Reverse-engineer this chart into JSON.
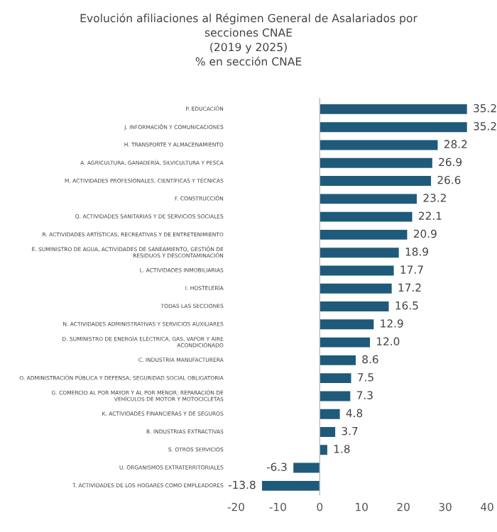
{
  "chart_data": {
    "type": "bar",
    "orientation": "horizontal",
    "title": "Evolución afiliaciones al Régimen General de Asalariados por\nsecciones CNAE\n(2019 y 2025)\n% en sección CNAE",
    "categories": [
      "P. EDUCACIÓN",
      "J. INFORMACIÓN Y COMUNICACIONES",
      "H. TRANSPORTE Y ALMACENAMIENTO",
      "A. AGRICULTURA, GANADERÍA, SILVICULTURA Y PESCA",
      "M. ACTIVIDADES PROFESIONALES, CIENTÍFICAS Y TÉCNICAS",
      "F. CONSTRUCCIÓN",
      "Q. ACTIVIDADES SANITARIAS Y DE SERVICIOS SOCIALES",
      "R. ACTIVIDADES ARTÍSTICAS, RECREATIVAS Y DE ENTRETENIMIENTO",
      "E. SUMINISTRO DE AGUA, ACTIVIDADES DE SANEAMIENTO, GESTIÓN DE\nRESIDUOS Y DESCONTAMINACIÓN",
      "L. ACTIVIDADES INMOBILIARIAS",
      "I. HOSTELERÍA",
      "TODAS LAS SECCIONES",
      "N. ACTIVIDADES ADMINISTRATIVAS Y SERVICIOS AUXILIARES",
      "D. SUMINISTRO DE ENERGÍA ELÉCTRICA, GAS, VAPOR Y AIRE\nACONDICIONADO",
      "C. INDUSTRIA MANUFACTURERA",
      "O. ADMINISTRACIÓN PÚBLICA Y DEFENSA; SEGURIDAD SOCIAL OBLIGATORIA",
      "G. COMERCIO AL POR MAYOR Y AL POR MENOR; REPARACIÓN DE\nVEHÍCULOS DE MOTOR Y MOTOCICLETAS",
      "K. ACTIVIDADES FINANCIERAS Y DE SEGUROS",
      "B. INDUSTRIAS EXTRACTIVAS",
      "S. OTROS SERVICIOS",
      "U. ORGANISMOS EXTRATERRITORIALES",
      "T. ACTIVIDADES DE LOS HOGARES COMO EMPLEADORES"
    ],
    "values": [
      35.2,
      35.2,
      28.2,
      26.9,
      26.6,
      23.2,
      22.1,
      20.9,
      18.9,
      17.7,
      17.2,
      16.5,
      12.9,
      12.0,
      8.6,
      7.5,
      7.3,
      4.8,
      3.7,
      1.8,
      -6.3,
      -13.8
    ],
    "value_labels": [
      "35.2",
      "35.2",
      "28.2",
      "26.9",
      "26.6",
      "23.2",
      "22.1",
      "20.9",
      "18.9",
      "17.7",
      "17.2",
      "16.5",
      "12.9",
      "12.0",
      "8.6",
      "7.5",
      "7.3",
      "4.8",
      "3.7",
      "1.8",
      "-6.3",
      "-13.8"
    ],
    "color": "#1f5a7a",
    "xlim": [
      -20,
      40
    ],
    "xticks": [
      -20,
      -10,
      0,
      10,
      20,
      30,
      40
    ]
  }
}
